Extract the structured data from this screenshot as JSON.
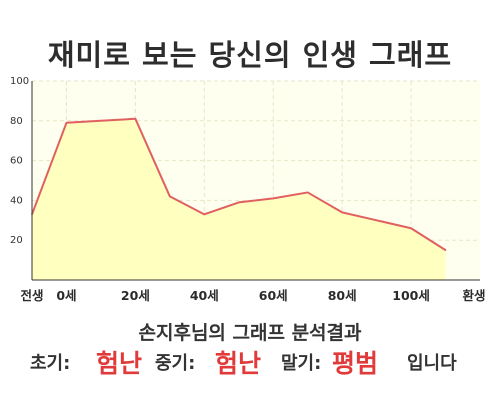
{
  "title": "재미로 보는 당신의 인생 그래프",
  "subtitle": "손지후님의 그래프 분석결과",
  "verdict": {
    "early_label": "초기:",
    "early_value": "험난",
    "middle_label": "중기:",
    "middle_value": "험난",
    "late_label": "말기:",
    "late_value": "평범",
    "suffix": "입니다"
  },
  "colors": {
    "line": "#e06060",
    "fill": "#ffffc0",
    "plot_bg": "#fffff0",
    "grid": "#e8e6c8",
    "verdict_accent": "#e03a3a"
  },
  "chart_data": {
    "type": "area",
    "x": [
      -10,
      0,
      10,
      20,
      30,
      40,
      50,
      60,
      70,
      80,
      90,
      100,
      110
    ],
    "values": [
      33,
      79,
      80,
      81,
      42,
      33,
      39,
      41,
      44,
      34,
      30,
      26,
      15
    ],
    "xticks": [
      {
        "x": -10,
        "label": "전생"
      },
      {
        "x": 0,
        "label": "0세"
      },
      {
        "x": 20,
        "label": "20세"
      },
      {
        "x": 40,
        "label": "40세"
      },
      {
        "x": 60,
        "label": "60세"
      },
      {
        "x": 80,
        "label": "80세"
      },
      {
        "x": 100,
        "label": "100세"
      },
      {
        "x": 120,
        "label": "환생"
      }
    ],
    "yticks": [
      20,
      40,
      60,
      80,
      100
    ],
    "xlim": [
      -10,
      120
    ],
    "ylim": [
      0,
      100
    ],
    "grid": true
  }
}
